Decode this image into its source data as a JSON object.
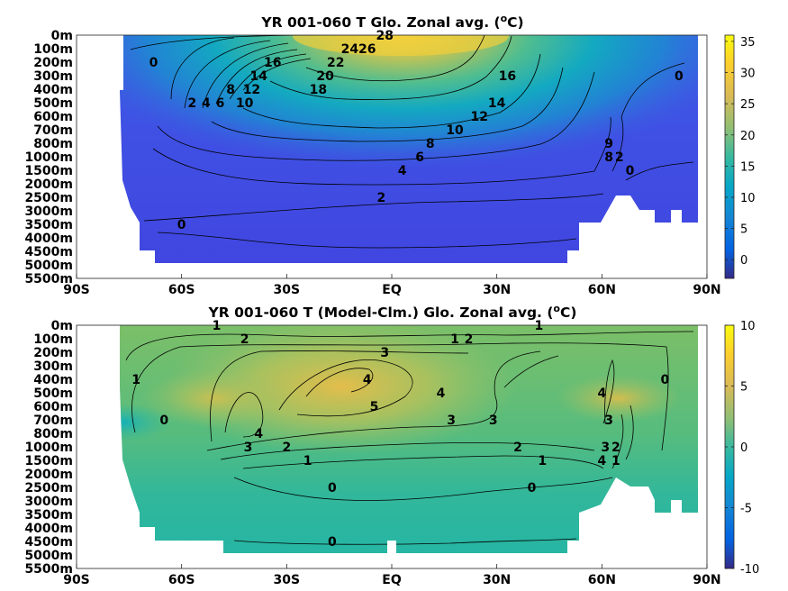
{
  "chart_data": [
    {
      "type": "heatmap",
      "title": "YR 001-060 T Glo. Zonal avg. (",
      "title_sup": "o",
      "title_end": "C)",
      "x_ticks": [
        "90S",
        "60S",
        "30S",
        "EQ",
        "30N",
        "60N",
        "90N"
      ],
      "x_values": [
        -90,
        -60,
        -30,
        0,
        30,
        60,
        90
      ],
      "y_ticks": [
        "0m",
        "100m",
        "200m",
        "300m",
        "400m",
        "500m",
        "600m",
        "700m",
        "800m",
        "1000m",
        "1500m",
        "2000m",
        "2500m",
        "3000m",
        "3500m",
        "4000m",
        "4500m",
        "5000m",
        "5500m"
      ],
      "colorbar_ticks": [
        "35",
        "30",
        "25",
        "20",
        "15",
        "10",
        "5",
        "0"
      ],
      "colorbar_values": [
        35,
        30,
        25,
        20,
        15,
        10,
        5,
        0
      ],
      "clim": [
        -3,
        36
      ],
      "contour_labels": [
        {
          "text": "0",
          "lat": -68,
          "depth": "200m"
        },
        {
          "text": "28",
          "lat": -2,
          "depth": "0m"
        },
        {
          "text": "26",
          "lat": -7,
          "depth": "100m"
        },
        {
          "text": "24",
          "lat": -12,
          "depth": "100m"
        },
        {
          "text": "22",
          "lat": -16,
          "depth": "200m"
        },
        {
          "text": "20",
          "lat": -19,
          "depth": "300m"
        },
        {
          "text": "18",
          "lat": -21,
          "depth": "400m"
        },
        {
          "text": "16",
          "lat": -34,
          "depth": "200m"
        },
        {
          "text": "14",
          "lat": -38,
          "depth": "300m"
        },
        {
          "text": "12",
          "lat": -40,
          "depth": "400m"
        },
        {
          "text": "10",
          "lat": -42,
          "depth": "500m"
        },
        {
          "text": "8",
          "lat": -46,
          "depth": "400m"
        },
        {
          "text": "6",
          "lat": -49,
          "depth": "500m"
        },
        {
          "text": "4",
          "lat": -53,
          "depth": "500m"
        },
        {
          "text": "2",
          "lat": -57,
          "depth": "500m"
        },
        {
          "text": "16",
          "lat": 33,
          "depth": "300m"
        },
        {
          "text": "14",
          "lat": 30,
          "depth": "500m"
        },
        {
          "text": "12",
          "lat": 25,
          "depth": "600m"
        },
        {
          "text": "10",
          "lat": 18,
          "depth": "700m"
        },
        {
          "text": "8",
          "lat": 11,
          "depth": "800m"
        },
        {
          "text": "6",
          "lat": 8,
          "depth": "1000m"
        },
        {
          "text": "4",
          "lat": 3,
          "depth": "1500m"
        },
        {
          "text": "2",
          "lat": -3,
          "depth": "2500m"
        },
        {
          "text": "0",
          "lat": -60,
          "depth": "3500m"
        },
        {
          "text": "0",
          "lat": 82,
          "depth": "300m"
        },
        {
          "text": "0",
          "lat": 68,
          "depth": "1500m"
        },
        {
          "text": "9",
          "lat": 62,
          "depth": "800m"
        },
        {
          "text": "2",
          "lat": 65,
          "depth": "1000m"
        },
        {
          "text": "8",
          "lat": 62,
          "depth": "1000m"
        }
      ]
    },
    {
      "type": "heatmap",
      "title": "YR 001-060 T (Model-Clm.) Glo. Zonal avg. (",
      "title_sup": "o",
      "title_end": "C)",
      "x_ticks": [
        "90S",
        "60S",
        "30S",
        "EQ",
        "30N",
        "60N",
        "90N"
      ],
      "x_values": [
        -90,
        -60,
        -30,
        0,
        30,
        60,
        90
      ],
      "y_ticks": [
        "0m",
        "100m",
        "200m",
        "300m",
        "400m",
        "500m",
        "600m",
        "700m",
        "800m",
        "1000m",
        "1500m",
        "2000m",
        "2500m",
        "3000m",
        "3500m",
        "4000m",
        "4500m",
        "5000m",
        "5500m"
      ],
      "colorbar_ticks": [
        "10",
        "5",
        "0",
        "-5",
        "-10"
      ],
      "colorbar_values": [
        10,
        5,
        0,
        -5,
        -10
      ],
      "clim": [
        -10,
        10
      ],
      "contour_labels": [
        {
          "text": "1",
          "lat": -50,
          "depth": "0m"
        },
        {
          "text": "2",
          "lat": -42,
          "depth": "100m"
        },
        {
          "text": "1",
          "lat": -73,
          "depth": "400m"
        },
        {
          "text": "0",
          "lat": -65,
          "depth": "700m"
        },
        {
          "text": "4",
          "lat": -7,
          "depth": "400m"
        },
        {
          "text": "5",
          "lat": -5,
          "depth": "600m"
        },
        {
          "text": "3",
          "lat": -2,
          "depth": "200m"
        },
        {
          "text": "4",
          "lat": -38,
          "depth": "800m"
        },
        {
          "text": "3",
          "lat": -41,
          "depth": "1000m"
        },
        {
          "text": "2",
          "lat": -30,
          "depth": "1000m"
        },
        {
          "text": "1",
          "lat": -24,
          "depth": "1500m"
        },
        {
          "text": "0",
          "lat": -17,
          "depth": "2500m"
        },
        {
          "text": "0",
          "lat": -17,
          "depth": "4500m"
        },
        {
          "text": "1",
          "lat": 18,
          "depth": "100m"
        },
        {
          "text": "2",
          "lat": 22,
          "depth": "100m"
        },
        {
          "text": "1",
          "lat": 42,
          "depth": "0m"
        },
        {
          "text": "4",
          "lat": 14,
          "depth": "500m"
        },
        {
          "text": "3",
          "lat": 17,
          "depth": "700m"
        },
        {
          "text": "3",
          "lat": 29,
          "depth": "700m"
        },
        {
          "text": "2",
          "lat": 36,
          "depth": "1000m"
        },
        {
          "text": "1",
          "lat": 43,
          "depth": "1500m"
        },
        {
          "text": "0",
          "lat": 40,
          "depth": "2500m"
        },
        {
          "text": "0",
          "lat": 78,
          "depth": "400m"
        },
        {
          "text": "4",
          "lat": 60,
          "depth": "500m"
        },
        {
          "text": "3",
          "lat": 62,
          "depth": "700m"
        },
        {
          "text": "3",
          "lat": 61,
          "depth": "1000m"
        },
        {
          "text": "2",
          "lat": 64,
          "depth": "1000m"
        },
        {
          "text": "1",
          "lat": 64,
          "depth": "1500m"
        },
        {
          "text": "4",
          "lat": 60,
          "depth": "1500m"
        }
      ]
    }
  ]
}
